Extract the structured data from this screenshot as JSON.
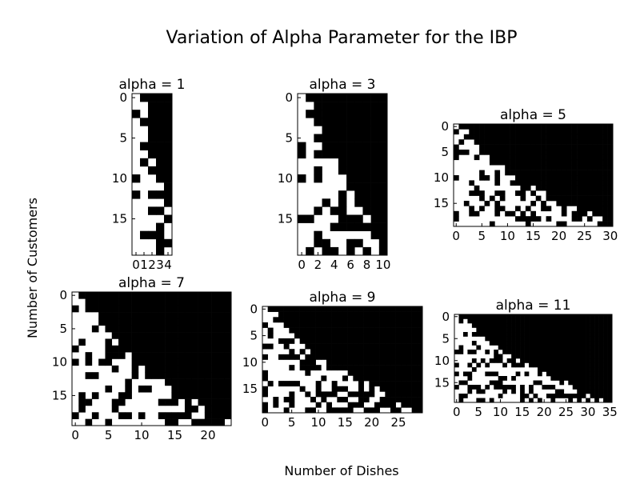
{
  "figure": {
    "title": "Variation of Alpha Parameter for the IBP",
    "xlabel": "Number of Dishes",
    "ylabel": "Number of Customers"
  },
  "colors": {
    "on": "#000000",
    "off": "#ffffff",
    "text": "#000000"
  },
  "chart_data": [
    {
      "type": "heatmap",
      "title": "alpha = 1",
      "alpha": 1,
      "rows": 20,
      "cols": 5,
      "xlim": [
        -0.5,
        4.5
      ],
      "ylim": [
        19.5,
        -0.5
      ],
      "xticks": [
        0,
        1,
        2,
        3,
        4
      ],
      "yticks": [
        0,
        5,
        10,
        15
      ],
      "colormap": "gray (1 = black / dish taken, 0 = white)"
    },
    {
      "type": "heatmap",
      "title": "alpha = 3",
      "alpha": 3,
      "rows": 20,
      "cols": 11,
      "xlim": [
        -0.5,
        10.5
      ],
      "ylim": [
        19.5,
        -0.5
      ],
      "xticks": [
        0,
        2,
        4,
        6,
        8,
        10
      ],
      "yticks": [
        0,
        5,
        10,
        15
      ],
      "colormap": "gray (1 = black / dish taken, 0 = white)"
    },
    {
      "type": "heatmap",
      "title": "alpha = 5",
      "alpha": 5,
      "rows": 20,
      "cols": 31,
      "xlim": [
        -0.5,
        30.5
      ],
      "ylim": [
        19.5,
        -0.5
      ],
      "xticks": [
        0,
        5,
        10,
        15,
        20,
        25,
        30
      ],
      "yticks": [
        0,
        5,
        10,
        15
      ],
      "colormap": "gray (1 = black / dish taken, 0 = white)"
    },
    {
      "type": "heatmap",
      "title": "alpha = 7",
      "alpha": 7,
      "rows": 20,
      "cols": 24,
      "xlim": [
        -0.5,
        23.5
      ],
      "ylim": [
        19.5,
        -0.5
      ],
      "xticks": [
        0,
        5,
        10,
        15,
        20
      ],
      "yticks": [
        0,
        5,
        10,
        15
      ],
      "colormap": "gray (1 = black / dish taken, 0 = white)"
    },
    {
      "type": "heatmap",
      "title": "alpha = 9",
      "alpha": 9,
      "rows": 20,
      "cols": 30,
      "xlim": [
        -0.5,
        29.5
      ],
      "ylim": [
        19.5,
        -0.5
      ],
      "xticks": [
        0,
        5,
        10,
        15,
        20,
        25
      ],
      "yticks": [
        0,
        5,
        10,
        15
      ],
      "colormap": "gray (1 = black / dish taken, 0 = white)"
    },
    {
      "type": "heatmap",
      "title": "alpha = 11",
      "alpha": 11,
      "rows": 20,
      "cols": 36,
      "xlim": [
        -0.5,
        35.5
      ],
      "ylim": [
        19.5,
        -0.5
      ],
      "xticks": [
        0,
        5,
        10,
        15,
        20,
        25,
        30,
        35
      ],
      "yticks": [
        0,
        5,
        10,
        15
      ],
      "colormap": "gray (1 = black / dish taken, 0 = white)"
    }
  ]
}
